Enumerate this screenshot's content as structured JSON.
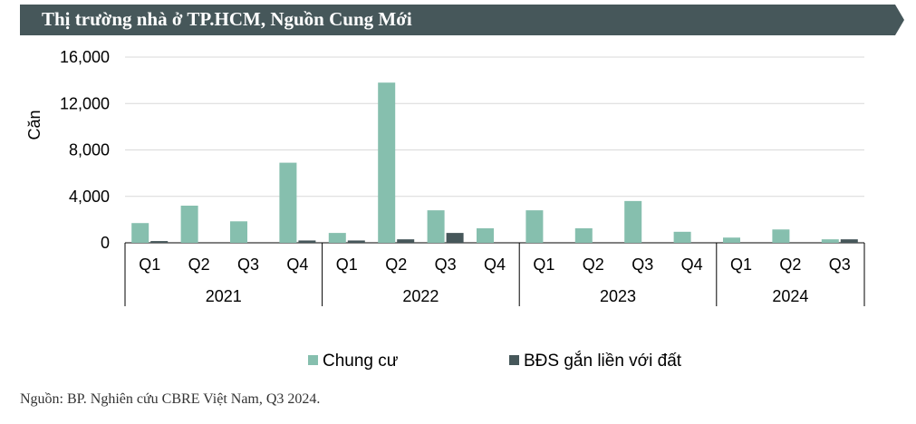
{
  "header": {
    "title": "Thị trường nhà ở TP.HCM, Nguồn Cung Mới"
  },
  "colors": {
    "banner": "#46575a",
    "series1": "#86bfae",
    "series2": "#46575a",
    "grid": "#d9d9d9",
    "axis": "#000000"
  },
  "chart_data": {
    "type": "bar",
    "ylabel": "Căn",
    "ylim": [
      0,
      16000
    ],
    "yticks": [
      "0",
      "4,000",
      "8,000",
      "12,000",
      "16,000"
    ],
    "ytick_values": [
      0,
      4000,
      8000,
      12000,
      16000
    ],
    "groups": [
      {
        "label": "2021",
        "quarters": [
          "Q1",
          "Q2",
          "Q3",
          "Q4"
        ]
      },
      {
        "label": "2022",
        "quarters": [
          "Q1",
          "Q2",
          "Q3",
          "Q4"
        ]
      },
      {
        "label": "2023",
        "quarters": [
          "Q1",
          "Q2",
          "Q3",
          "Q4"
        ]
      },
      {
        "label": "2024",
        "quarters": [
          "Q1",
          "Q2",
          "Q3"
        ]
      }
    ],
    "series": [
      {
        "name": "Chung cư",
        "values": [
          1700,
          3200,
          1850,
          6900,
          850,
          13800,
          2800,
          1250,
          2800,
          1250,
          3600,
          950,
          450,
          1150,
          300
        ]
      },
      {
        "name": "BĐS gắn liền với đất",
        "values": [
          150,
          0,
          0,
          200,
          200,
          300,
          850,
          0,
          0,
          0,
          0,
          0,
          0,
          0,
          300
        ]
      }
    ],
    "legend_position": "bottom"
  },
  "footer": {
    "source": "Nguồn: BP. Nghiên cứu CBRE Việt Nam, Q3 2024."
  }
}
